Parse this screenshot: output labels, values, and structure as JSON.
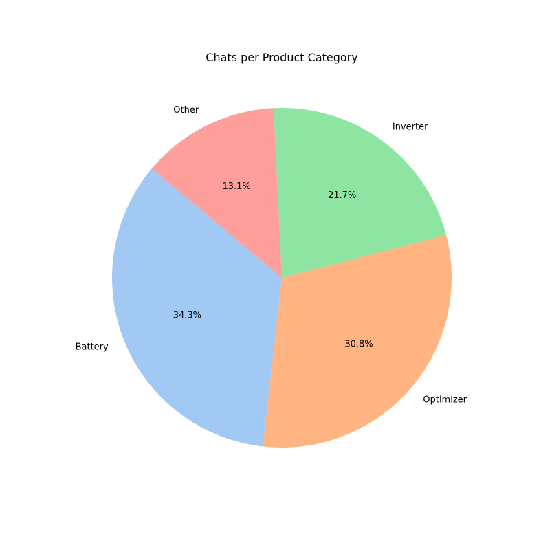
{
  "chart_data": {
    "type": "pie",
    "title": "Chats per Product Category",
    "categories": [
      "Battery",
      "Optimizer",
      "Inverter",
      "Other"
    ],
    "values": [
      34.3,
      30.8,
      21.7,
      13.1
    ],
    "percent_labels": [
      "34.3%",
      "30.8%",
      "21.7%",
      "13.1%"
    ],
    "colors": [
      "#a1c9f4",
      "#ffb482",
      "#8de5a1",
      "#ff9f9b"
    ],
    "start_angle_deg": 140,
    "direction": "counterclockwise",
    "legend": "none"
  }
}
